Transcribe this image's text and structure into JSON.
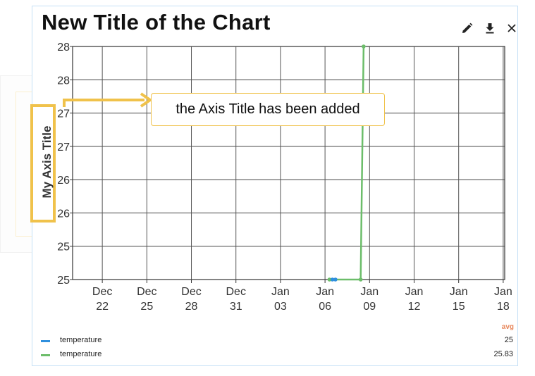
{
  "chart_data": {
    "type": "line",
    "title": "New Title of the Chart",
    "ylabel": "My Axis Title",
    "xlabel": "",
    "ylim": [
      25,
      28
    ],
    "y_tick_labels": [
      "28",
      "28",
      "27",
      "27",
      "26",
      "26",
      "25",
      "25"
    ],
    "x_ticks": [
      {
        "line1": "Dec",
        "line2": "22",
        "day": 0
      },
      {
        "line1": "Dec",
        "line2": "25",
        "day": 3
      },
      {
        "line1": "Dec",
        "line2": "28",
        "day": 6
      },
      {
        "line1": "Dec",
        "line2": "31",
        "day": 9
      },
      {
        "line1": "Jan",
        "line2": "03",
        "day": 12
      },
      {
        "line1": "Jan",
        "line2": "06",
        "day": 15
      },
      {
        "line1": "Jan",
        "line2": "09",
        "day": 18
      },
      {
        "line1": "Jan",
        "line2": "12",
        "day": 21
      },
      {
        "line1": "Jan",
        "line2": "15",
        "day": 24
      },
      {
        "line1": "Jan",
        "line2": "18",
        "day": 27
      }
    ],
    "x_range_days": [
      -2,
      27.1
    ],
    "series": [
      {
        "name": "temperature",
        "color": "#2f8fdd",
        "stat": "25",
        "points": [
          [
            15.5,
            25
          ],
          [
            15.7,
            25
          ]
        ]
      },
      {
        "name": "temperature",
        "color": "#6cbd6a",
        "stat": "25.83",
        "points": [
          [
            15.3,
            25
          ],
          [
            17.4,
            25
          ],
          [
            17.6,
            28
          ]
        ]
      }
    ],
    "legend_stat_label": "avg"
  },
  "annotation": {
    "text": "the Axis Title has been added",
    "color": "#f0c24b"
  },
  "toolbar": {
    "edit": "pencil-icon",
    "download": "download-icon",
    "close": "close-icon"
  }
}
